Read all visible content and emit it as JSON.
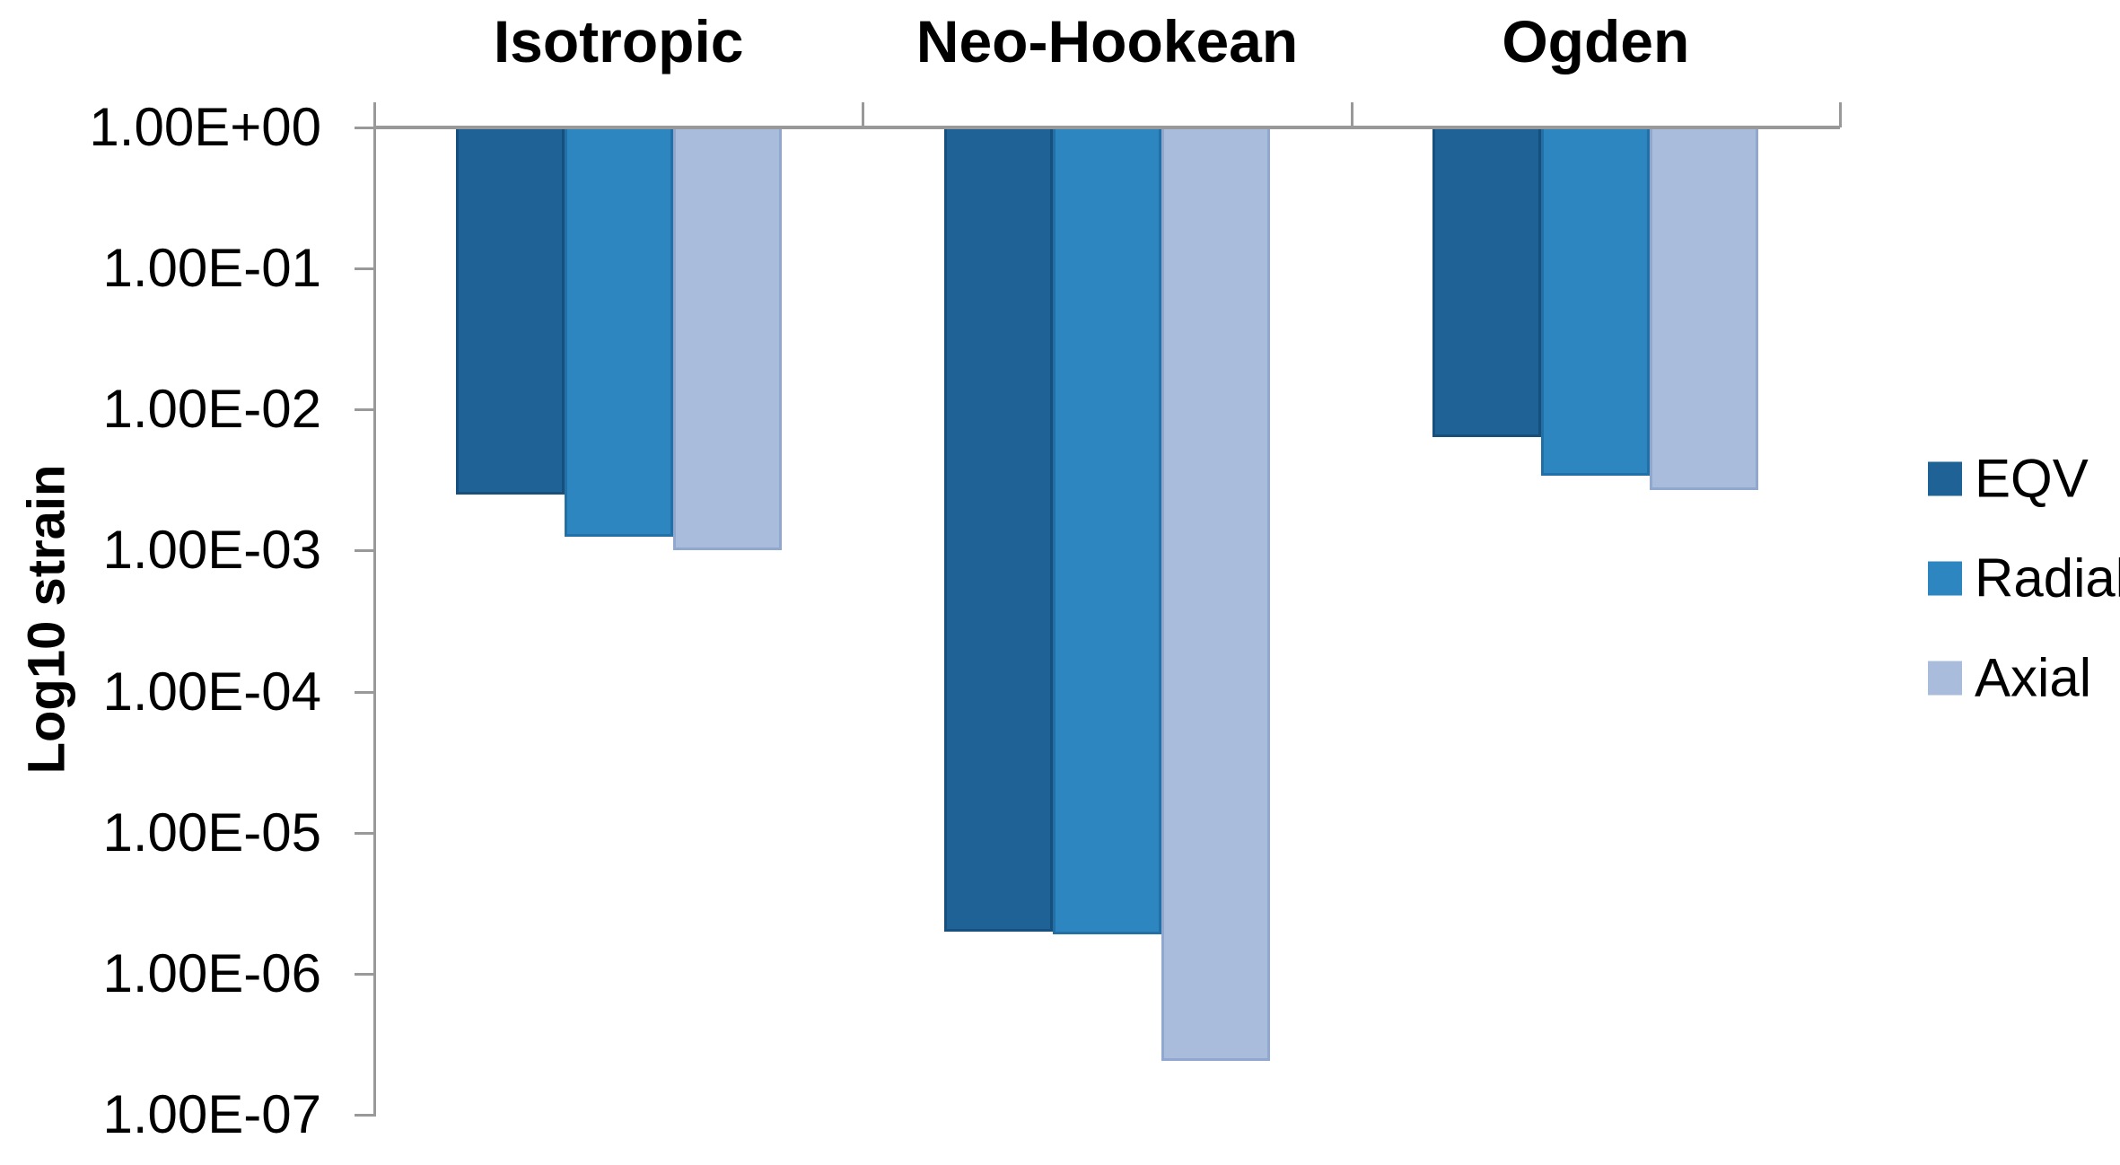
{
  "chart_data": {
    "type": "bar",
    "title": "",
    "ylabel": "Log10 strain",
    "xlabel": "",
    "yscale": "log",
    "ylim": [
      1e-07,
      1.0
    ],
    "ytick_labels": [
      "1.00E+00",
      "1.00E-01",
      "1.00E-02",
      "1.00E-03",
      "1.00E-04",
      "1.00E-05",
      "1.00E-06",
      "1.00E-07"
    ],
    "categories": [
      "Isotropic",
      "Neo-Hookean",
      "Ogden"
    ],
    "series": [
      {
        "name": "EQV",
        "color": "#1F6396",
        "border_color": "#17507C",
        "values": [
          0.0025,
          2e-06,
          0.0064
        ]
      },
      {
        "name": "Radial",
        "color": "#2E86C1",
        "border_color": "#2270A5",
        "values": [
          0.00125,
          1.9e-06,
          0.0034
        ]
      },
      {
        "name": "Axial",
        "color": "#A9BCDB",
        "border_color": "#90A8CF",
        "values": [
          0.001,
          2.4e-07,
          0.0027
        ]
      }
    ],
    "bars_hang_from_top": true,
    "grid": "off",
    "legend_position": "right",
    "axis_color": "#999999",
    "text_color": "#000000"
  }
}
